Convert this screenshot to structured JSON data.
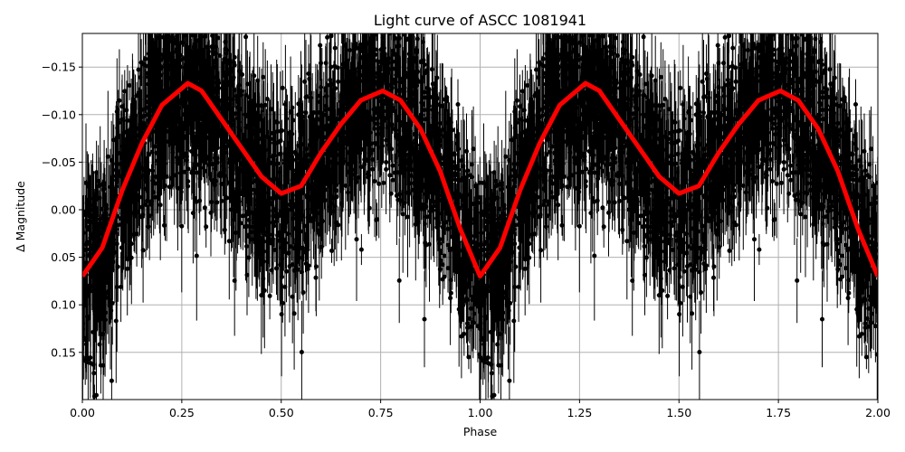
{
  "chart_data": {
    "type": "scatter",
    "title": "Light curve of ASCC 1081941",
    "xlabel": "Phase",
    "ylabel": "Δ Magnitude",
    "xlim": [
      0,
      2
    ],
    "ylim": [
      0.2,
      -0.185
    ],
    "y_inverted": true,
    "grid": true,
    "xticks": [
      "0.00",
      "0.25",
      "0.50",
      "0.75",
      "1.00",
      "1.25",
      "1.50",
      "1.75",
      "2.00"
    ],
    "yticks": [
      "−0.15",
      "−0.10",
      "−0.05",
      "0.00",
      "0.05",
      "0.10",
      "0.15"
    ],
    "series": [
      {
        "name": "observations",
        "style": "black points with error bars",
        "color": "#000000",
        "note": "dense cloud of points with scatter roughly ±0.05–0.1 around the model curve"
      },
      {
        "name": "model",
        "style": "red line",
        "color": "#ff0000",
        "x": [
          0.0,
          0.05,
          0.1,
          0.15,
          0.2,
          0.265,
          0.3,
          0.35,
          0.4,
          0.45,
          0.5,
          0.55,
          0.6,
          0.65,
          0.7,
          0.755,
          0.8,
          0.85,
          0.9,
          0.95,
          1.0,
          1.05,
          1.1,
          1.15,
          1.2,
          1.265,
          1.3,
          1.35,
          1.4,
          1.45,
          1.5,
          1.55,
          1.6,
          1.65,
          1.7,
          1.755,
          1.8,
          1.85,
          1.9,
          1.95,
          2.0
        ],
        "y": [
          0.07,
          0.04,
          -0.02,
          -0.07,
          -0.11,
          -0.133,
          -0.125,
          -0.095,
          -0.065,
          -0.035,
          -0.017,
          -0.025,
          -0.06,
          -0.09,
          -0.115,
          -0.125,
          -0.115,
          -0.085,
          -0.04,
          0.02,
          0.07,
          0.04,
          -0.02,
          -0.07,
          -0.11,
          -0.133,
          -0.125,
          -0.095,
          -0.065,
          -0.035,
          -0.017,
          -0.025,
          -0.06,
          -0.09,
          -0.115,
          -0.125,
          -0.115,
          -0.085,
          -0.04,
          0.02,
          0.07
        ]
      }
    ]
  }
}
